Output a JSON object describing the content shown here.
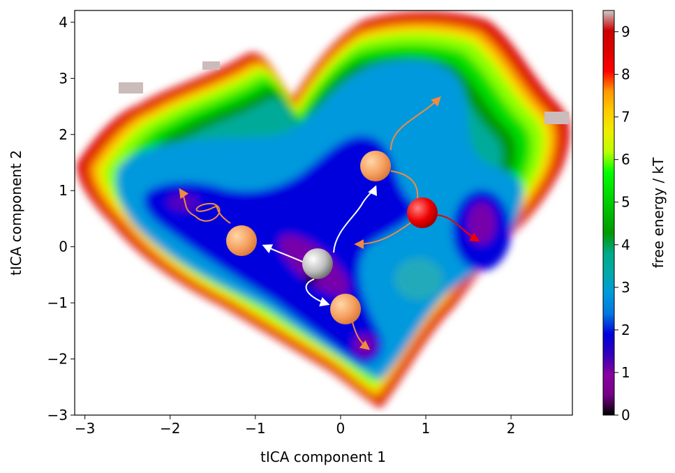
{
  "chart_data": {
    "type": "contour",
    "xlabel": "tICA component 1",
    "ylabel": "tICA component 2",
    "xlim": [
      -3.12,
      2.72
    ],
    "ylim": [
      -3.0,
      4.21
    ],
    "xticks": [
      {
        "value": -3,
        "label": "−3"
      },
      {
        "value": -2,
        "label": "−2"
      },
      {
        "value": -1,
        "label": "−1"
      },
      0,
      1,
      2
    ],
    "yticks": [
      {
        "value": -3,
        "label": "−3"
      },
      {
        "value": -2,
        "label": "−2"
      },
      {
        "value": -1,
        "label": "−1"
      },
      0,
      1,
      2,
      3,
      4
    ],
    "colorbar": {
      "label": "free energy / kT",
      "lim": [
        0,
        9.5
      ],
      "ticks": [
        0,
        1,
        2,
        3,
        4,
        5,
        6,
        7,
        8,
        9
      ],
      "colormap": "nipy_spectral"
    }
  }
}
